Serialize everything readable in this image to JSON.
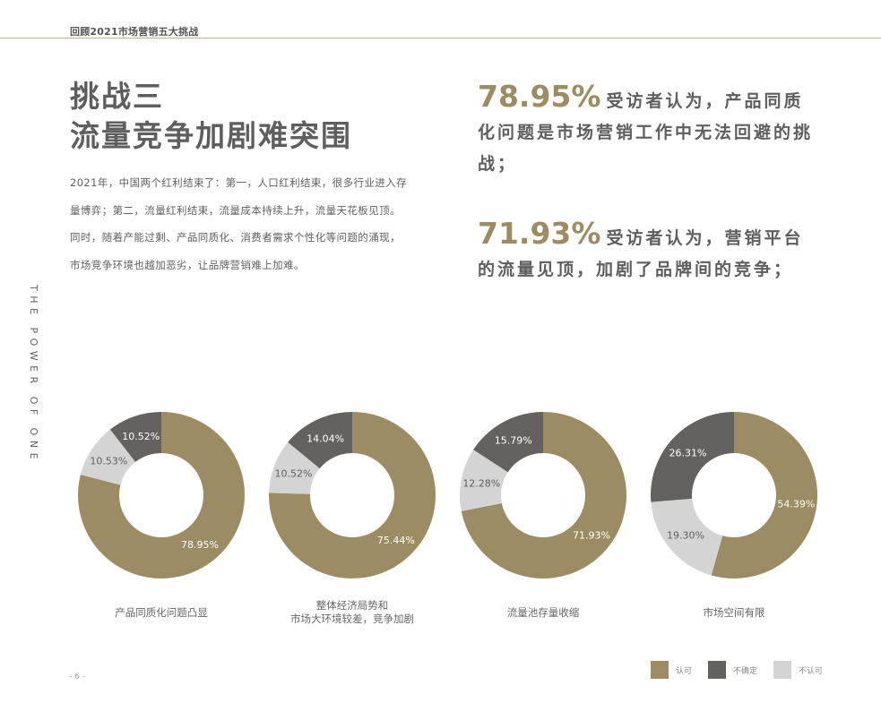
{
  "header": {
    "title": "回顾2021市场营销五大挑战"
  },
  "page": {
    "title_line1": "挑战三",
    "title_line2": "流量竞争加剧难突围",
    "intro": "2021年，中国两个红利结束了：第一，人口红利结束，很多行业进入存量博弈；第二，流量红利结束，流量成本持续上升，流量天花板见顶。同时，随着产能过剩、产品同质化、消费者需求个性化等问题的涌现，市场竞争环境也越加恶劣，让品牌营销难上加难。",
    "vertical_text": "THE POWER OF ONE",
    "page_number": "- 6 -"
  },
  "stats": [
    {
      "pct": "78.95%",
      "text": "受访者认为，产品同质化问题是市场营销工作中无法回避的挑战；"
    },
    {
      "pct": "71.93%",
      "text": "受访者认为，营销平台的流量见顶，加剧了品牌间的竞争；"
    }
  ],
  "colors": {
    "agree": "#9b8c63",
    "unsure": "#636261",
    "disagree": "#d4d4d4"
  },
  "legend": [
    {
      "label": "认可",
      "color": "#9b8c63"
    },
    {
      "label": "不确定",
      "color": "#636261"
    },
    {
      "label": "不认可",
      "color": "#d4d4d4"
    }
  ],
  "chart_data": [
    {
      "type": "pie",
      "title": "产品同质化问题凸显",
      "categories": [
        "认可",
        "不认可",
        "不确定"
      ],
      "values": [
        78.95,
        10.53,
        10.52
      ],
      "labels": [
        "78.95%",
        "10.53%",
        "10.52%"
      ]
    },
    {
      "type": "pie",
      "title": "整体经济局势和市场大环境较差，竞争加剧",
      "categories": [
        "认可",
        "不认可",
        "不确定"
      ],
      "values": [
        75.44,
        10.52,
        14.04
      ],
      "labels": [
        "75.44%",
        "10.52%",
        "14.04%"
      ]
    },
    {
      "type": "pie",
      "title": "流量池存量收缩",
      "categories": [
        "认可",
        "不认可",
        "不确定"
      ],
      "values": [
        71.93,
        12.28,
        15.79
      ],
      "labels": [
        "71.93%",
        "12.28%",
        "15.79%"
      ]
    },
    {
      "type": "pie",
      "title": "市场空间有限",
      "categories": [
        "认可",
        "不认可",
        "不确定"
      ],
      "values": [
        54.39,
        19.3,
        26.31
      ],
      "labels": [
        "54.39%",
        "19.30%",
        "26.31%"
      ]
    }
  ],
  "categories_display": [
    {
      "line1": "产品同质化问题凸显",
      "line2": ""
    },
    {
      "line1": "整体经济局势和",
      "line2": "市场大环境较差，竞争加剧"
    },
    {
      "line1": "流量池存量收缩",
      "line2": ""
    },
    {
      "line1": "市场空间有限",
      "line2": ""
    }
  ]
}
